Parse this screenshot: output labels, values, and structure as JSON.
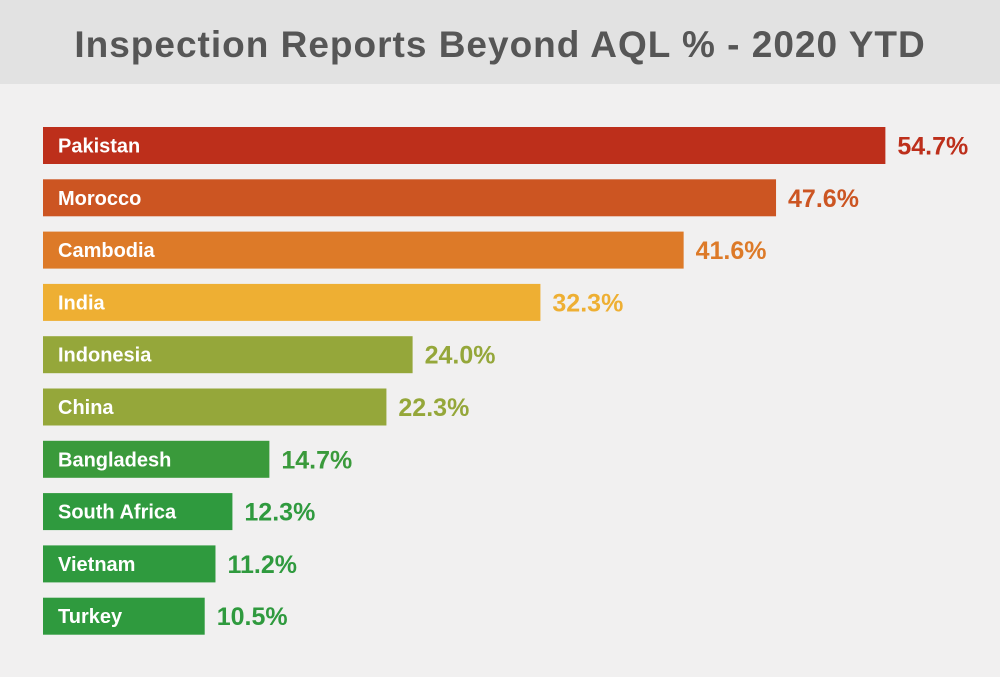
{
  "title": "Inspection Reports Beyond AQL % - 2020 YTD",
  "chart_data": {
    "type": "bar",
    "orientation": "horizontal",
    "title": "Inspection Reports Beyond AQL % - 2020 YTD",
    "xlabel": "",
    "ylabel": "",
    "grid": false,
    "legend": "none",
    "unit": "%",
    "categories": [
      "Pakistan",
      "Morocco",
      "Cambodia",
      "India",
      "Indonesia",
      "China",
      "Bangladesh",
      "South Africa",
      "Vietnam",
      "Turkey"
    ],
    "values": [
      54.7,
      47.6,
      41.6,
      32.3,
      24.0,
      22.3,
      14.7,
      12.3,
      11.2,
      10.5
    ],
    "value_labels": [
      "54.7%",
      "47.6%",
      "41.6%",
      "32.3%",
      "24.0%",
      "22.3%",
      "14.7%",
      "12.3%",
      "11.2%",
      "10.5%"
    ],
    "colors": [
      "#bd2f1b",
      "#cc5522",
      "#dd7a28",
      "#eeaf33",
      "#95a73a",
      "#95a73a",
      "#3a9a3b",
      "#2f9a3e",
      "#2f9a3e",
      "#2f9a3e"
    ]
  }
}
